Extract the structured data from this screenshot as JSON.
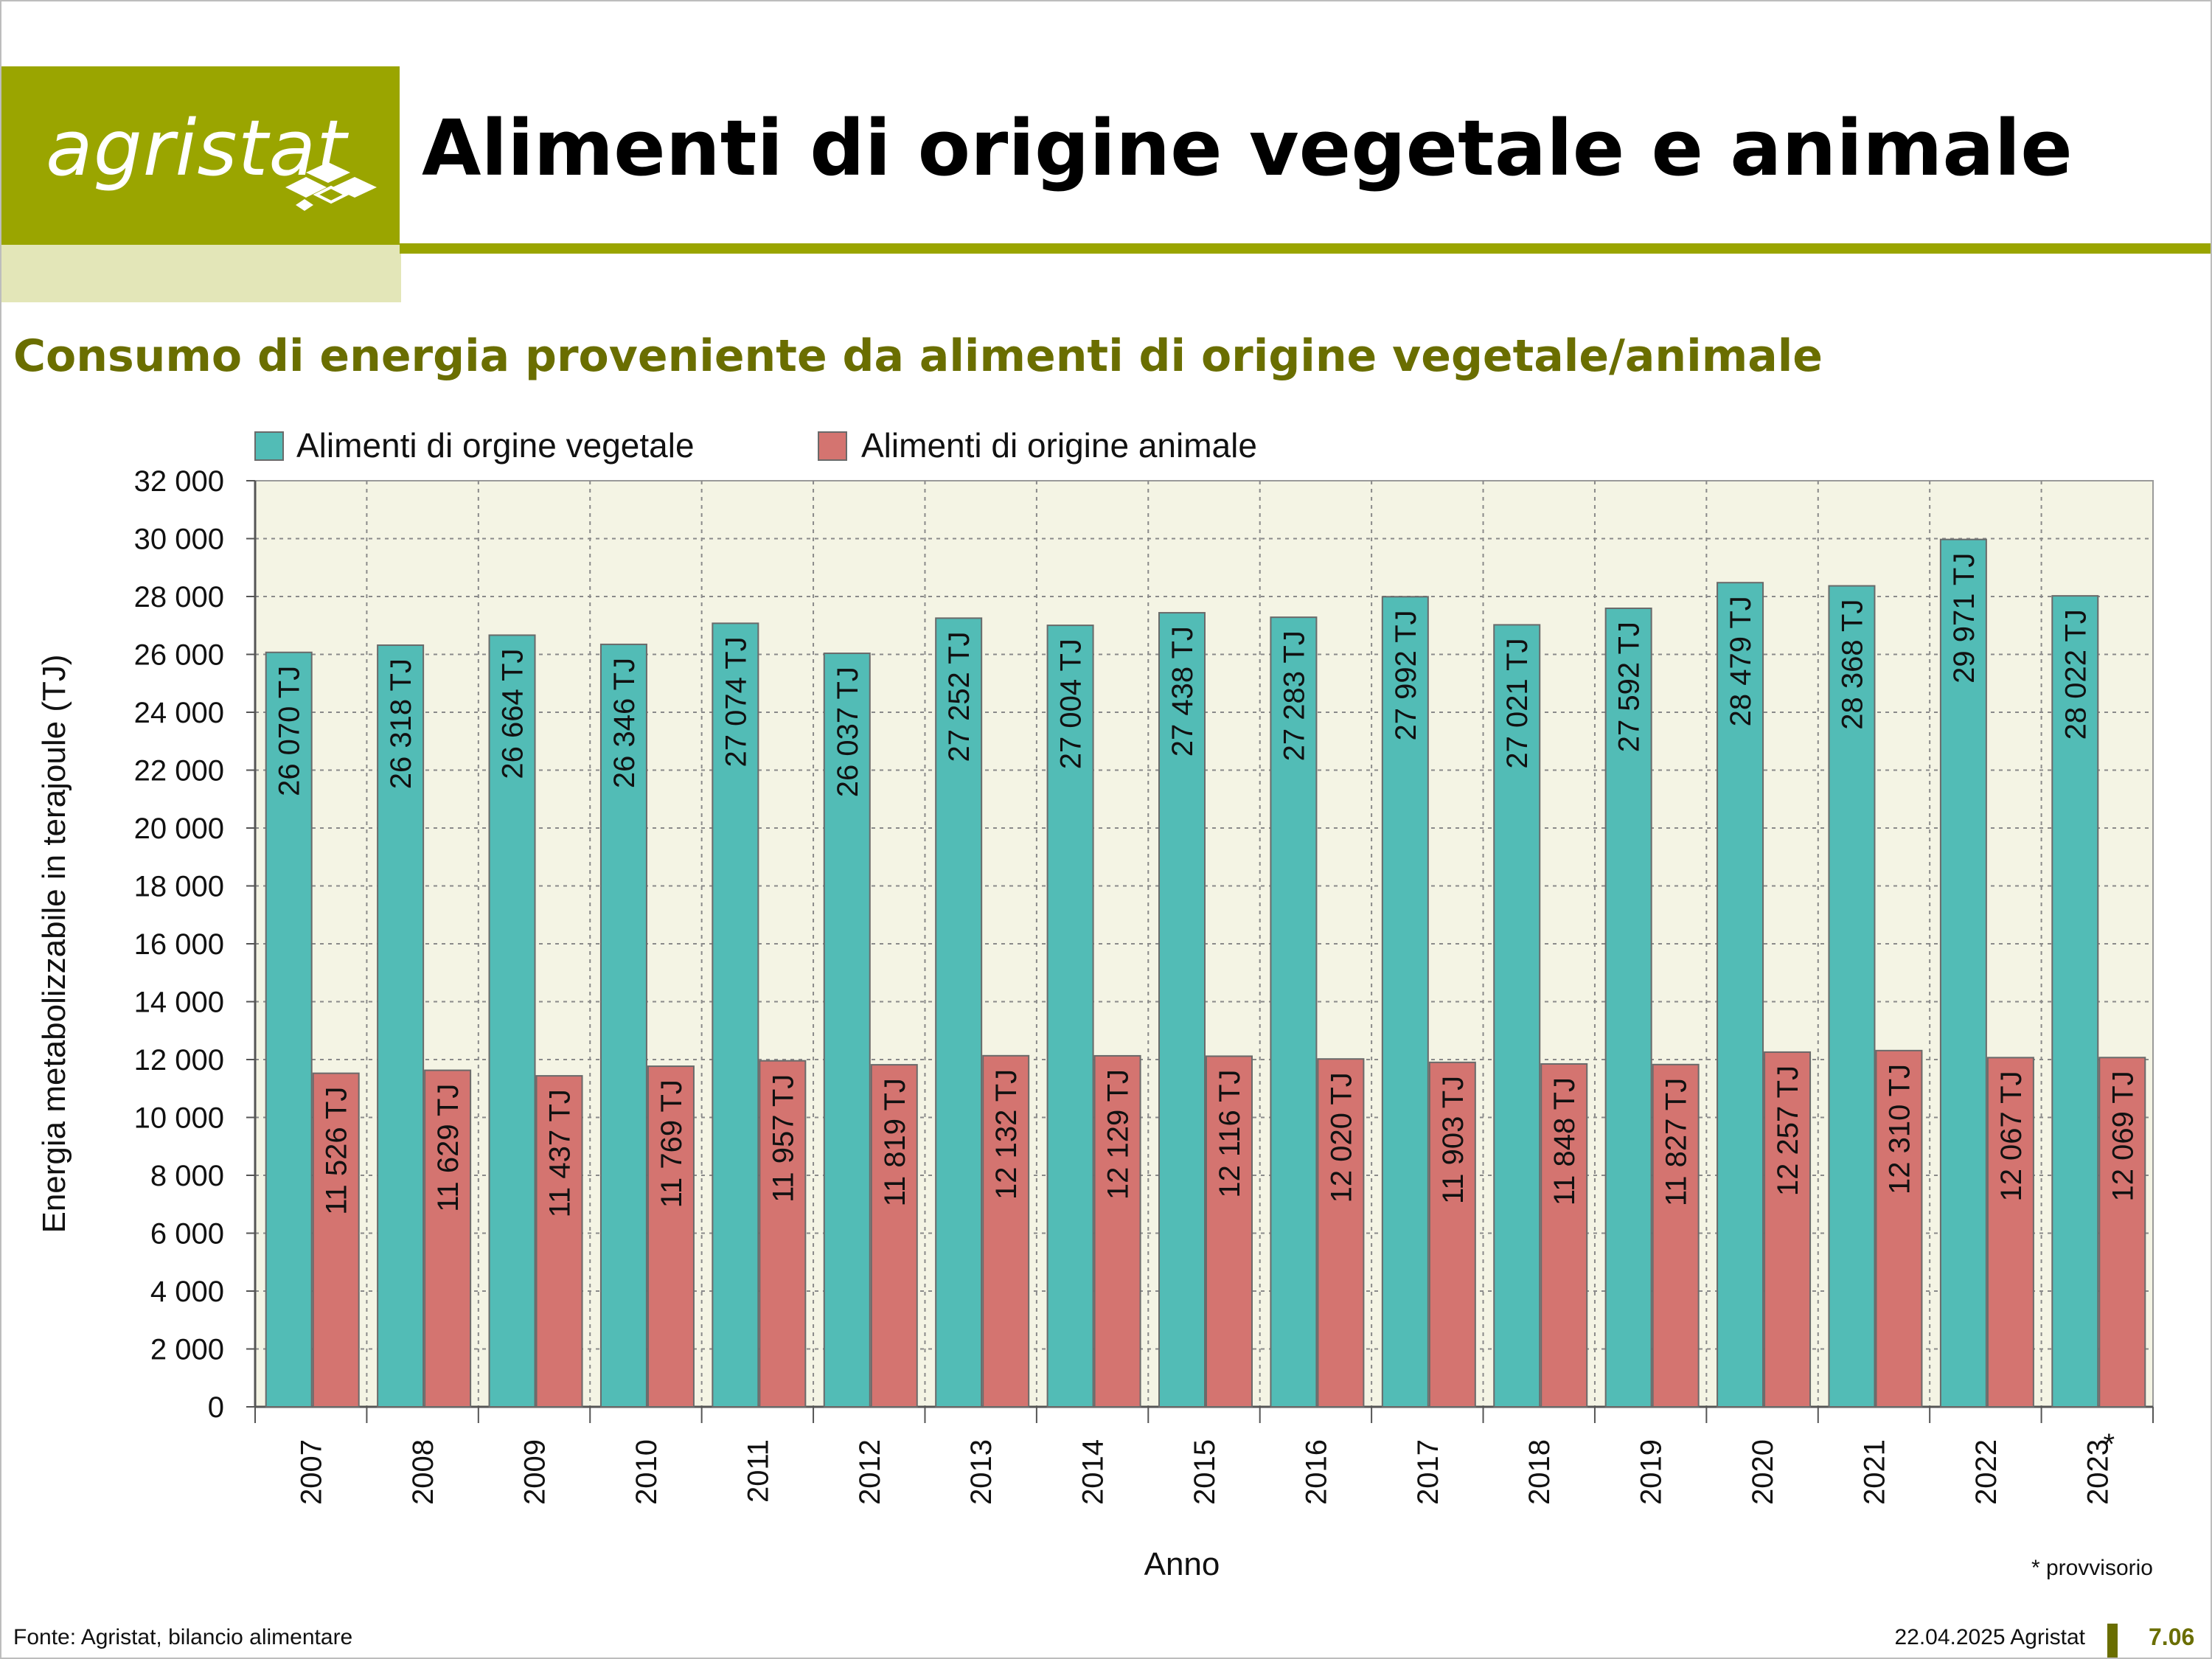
{
  "header": {
    "logo_text": "agristat",
    "title": "Alimenti di origine vegetale e animale"
  },
  "colors": {
    "brand_olive": "#9aa500",
    "subtitle_olive": "#6a6e00",
    "series_vegetale": "#52bcb6",
    "series_animale": "#d47470",
    "plot_background": "#f4f4e4"
  },
  "chart_data": {
    "type": "bar",
    "title": "Consumo di energia proveniente da alimenti di origine vegetale/animale",
    "xlabel": "Anno",
    "ylabel": "Energia metabolizzabile in terajoule (TJ)",
    "ylim": [
      0,
      32000
    ],
    "yticks": [
      "0",
      "2 000",
      "4 000",
      "6 000",
      "8 000",
      "10 000",
      "12 000",
      "14 000",
      "16 000",
      "18 000",
      "20 000",
      "22 000",
      "24 000",
      "26 000",
      "28 000",
      "30 000",
      "32 000"
    ],
    "grid": true,
    "legend_position": "top-left",
    "categories": [
      "2007",
      "2008",
      "2009",
      "2010",
      "2011",
      "2012",
      "2013",
      "2014",
      "2015",
      "2016",
      "2017",
      "2018",
      "2019",
      "2020",
      "2021",
      "2022",
      "2023"
    ],
    "category_markers": {
      "2023": "*"
    },
    "series": [
      {
        "name": "Alimenti di orgine vegetale",
        "color": "#52bcb6",
        "values": [
          26070,
          26318,
          26664,
          26346,
          27074,
          26037,
          27252,
          27004,
          27438,
          27283,
          27992,
          27021,
          27592,
          28479,
          28368,
          29971,
          28022
        ],
        "labels": [
          "26 070 TJ",
          "26 318 TJ",
          "26 664 TJ",
          "26 346 TJ",
          "27 074 TJ",
          "26 037 TJ",
          "27 252 TJ",
          "27 004 TJ",
          "27 438 TJ",
          "27 283 TJ",
          "27 992 TJ",
          "27 021 TJ",
          "27 592 TJ",
          "28 479 TJ",
          "28 368 TJ",
          "29 971 TJ",
          "28 022 TJ"
        ]
      },
      {
        "name": "Alimenti di origine animale",
        "color": "#d47470",
        "values": [
          11526,
          11629,
          11437,
          11769,
          11957,
          11819,
          12132,
          12129,
          12116,
          12020,
          11903,
          11848,
          11827,
          12257,
          12310,
          12067,
          12069
        ],
        "labels": [
          "11 526 TJ",
          "11 629 TJ",
          "11 437 TJ",
          "11 769 TJ",
          "11 957 TJ",
          "11 819 TJ",
          "12 132 TJ",
          "12 129 TJ",
          "12 116 TJ",
          "12 020 TJ",
          "11 903 TJ",
          "11 848 TJ",
          "11 827 TJ",
          "12 257 TJ",
          "12 310 TJ",
          "12 067 TJ",
          "12 069 TJ"
        ]
      }
    ],
    "note": "* provvisorio"
  },
  "footer": {
    "source": "Fonte: Agristat, bilancio alimentare",
    "date": "22.04.2025 Agristat",
    "page": "7.06"
  }
}
